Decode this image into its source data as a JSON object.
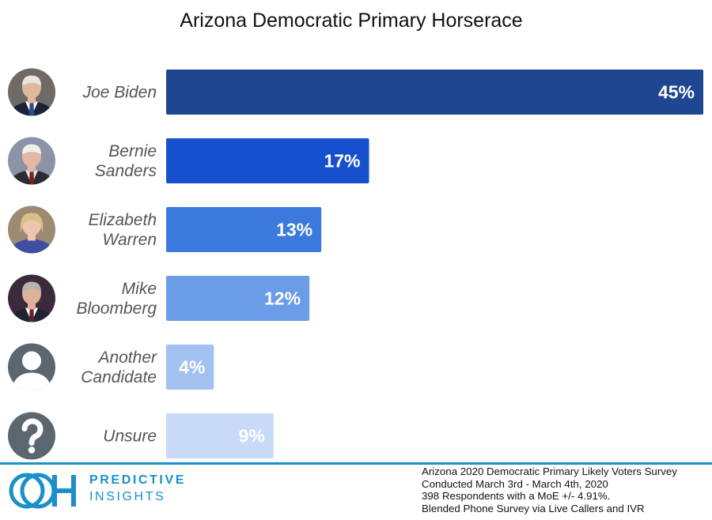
{
  "chart_data": {
    "type": "bar",
    "orientation": "horizontal",
    "title": "Arizona Democratic Primary Horserace",
    "categories": [
      [
        "Joe Biden"
      ],
      [
        "Bernie",
        "Sanders"
      ],
      [
        "Elizabeth",
        "Warren"
      ],
      [
        "Mike",
        "Bloomberg"
      ],
      [
        "Another",
        "Candidate"
      ],
      [
        "Unsure"
      ]
    ],
    "values": [
      45,
      17,
      13,
      12,
      4,
      9
    ],
    "value_labels": [
      "45%",
      "17%",
      "13%",
      "12%",
      "4%",
      "9%"
    ],
    "xlim": [
      0,
      45
    ],
    "bar_colors": [
      "#1f4690",
      "#1750cc",
      "#3b79dc",
      "#6b9ce8",
      "#a3c1f0",
      "#c8daf7"
    ],
    "avatars": [
      "biden-photo",
      "sanders-photo",
      "warren-photo",
      "bloomberg-photo",
      "person-silhouette-icon",
      "question-mark-icon"
    ],
    "grid": false,
    "legend": "none"
  },
  "logo": {
    "line1": "PREDICTIVE",
    "line2": "INSIGHTS",
    "color": "#1a8fc9"
  },
  "footnote": [
    "Arizona 2020 Democratic Primary Likely Voters Survey",
    "Conducted March 3rd - March 4th, 2020",
    "398 Respondents with a MoE +/- 4.91%.",
    "Blended Phone Survey via Live Callers and IVR"
  ]
}
